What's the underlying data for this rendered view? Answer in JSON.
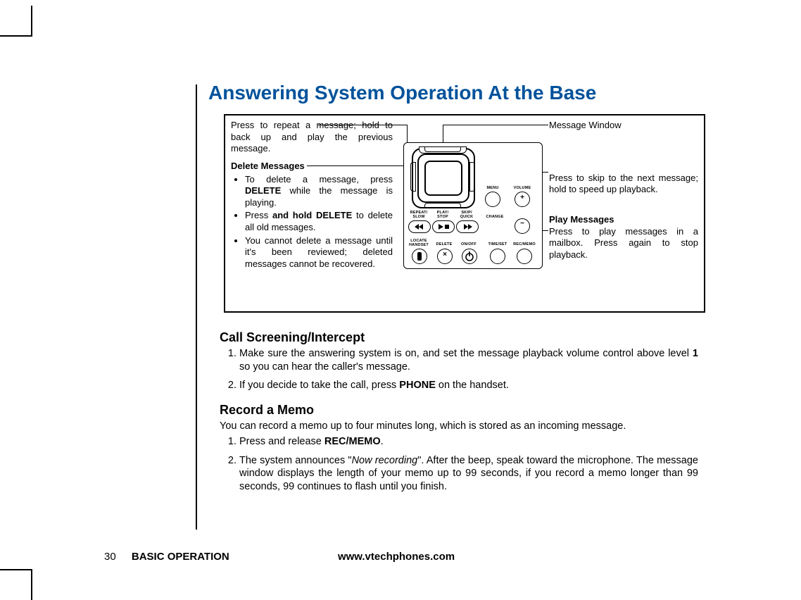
{
  "title": "Answering System Operation At the Base",
  "title_color": "#00529b",
  "left": {
    "repeat": "Press to repeat a message; hold to back up and play the previous message.",
    "delete_heading": "Delete Messages",
    "delete_items": [
      {
        "pre": "To delete a message, press ",
        "b": "DELETE",
        "post": " while the message is playing."
      },
      {
        "pre": "Press ",
        "b": "and hold DELETE",
        "post": " to delete all old messages."
      },
      {
        "pre": "You cannot delete a message until it's been reviewed; deleted messages cannot be recovered.",
        "b": "",
        "post": ""
      }
    ]
  },
  "right": {
    "message_window": "Message Window",
    "skip": "Press to skip to the next message; hold to speed up playback.",
    "play_heading": "Play Messages",
    "play_text": "Press to  play messages in a mailbox. Press again to stop playback."
  },
  "device_labels": {
    "menu": "MENU",
    "volume": "VOLUME",
    "repeat_slow": "REPEAT/\nSLOW",
    "play_stop": "PLAY/\nSTOP",
    "skip_quick": "SKIP/\nQUICK",
    "change": "CHANGE",
    "locate_handset": "LOCATE\nHANDSET",
    "delete": "DELETE",
    "onoff": "ON/OFF",
    "timeset": "TIME/SET",
    "recmemo": "REC/MEMO"
  },
  "call": {
    "heading": "Call Screening/Intercept",
    "items": [
      {
        "pre": "Make sure the answering system is on, and set the message playback volume control above level ",
        "b": "1",
        "post": " so you can hear the caller's message."
      },
      {
        "pre": "If you decide to take the call, press ",
        "b": "PHONE",
        "post": " on the handset."
      }
    ]
  },
  "memo": {
    "heading": "Record a Memo",
    "intro": "You can record a memo up to four minutes long, which is stored as an incoming message.",
    "items": [
      {
        "pre": "Press and release ",
        "b": "REC/MEMO",
        "post": "."
      },
      {
        "pre": "The system announces \"",
        "i": "Now recording",
        "post": "\". After the beep, speak toward the microphone. The message window displays the length of your memo up to 99 seconds, if you record a memo longer than 99 seconds, 99 continues to flash until you finish."
      }
    ]
  },
  "footer": {
    "page": "30",
    "section": "BASIC OPERATION",
    "url": "www.vtechphones.com"
  },
  "colors": {
    "text": "#000000",
    "bg": "#ffffff",
    "title": "#00529b"
  }
}
